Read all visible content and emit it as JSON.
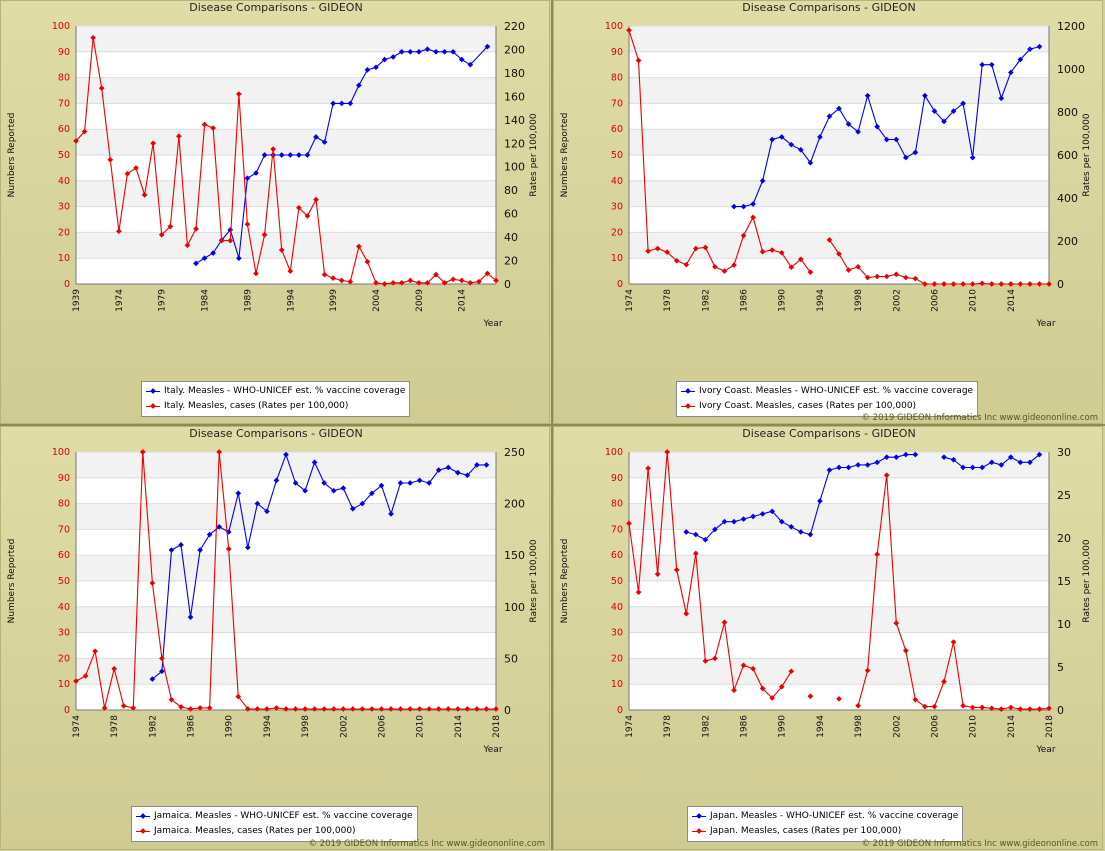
{
  "colors": {
    "coverage": "#0000ee",
    "cases": "#ee0000",
    "left_axis_text": "#dd0000"
  },
  "common": {
    "title": "Disease Comparisons - GIDEON",
    "ylabel_left": "Numbers Reported",
    "ylabel_right": "Rates per 100,000",
    "xlabel": "Year",
    "copyright": "© 2019 GIDEON Informatics Inc www.gideononline.com"
  },
  "chart_data": [
    {
      "type": "line",
      "title": "Disease Comparisons - GIDEON",
      "country": "Italy",
      "xlabel": "Year",
      "ylabel": "Numbers Reported",
      "y2label": "Rates per 100,000",
      "xticks": [
        "1939",
        "1974",
        "1979",
        "1984",
        "1989",
        "1994",
        "1999",
        "2004",
        "2009",
        "2014"
      ],
      "ylim": [
        0,
        100
      ],
      "y2lim": [
        0,
        220
      ],
      "yticks": [
        0,
        10,
        20,
        30,
        40,
        50,
        60,
        70,
        80,
        90,
        100
      ],
      "y2ticks": [
        0,
        20,
        40,
        60,
        80,
        100,
        120,
        140,
        160,
        180,
        200,
        220
      ],
      "grid": true,
      "legend": "bottom",
      "series": [
        {
          "name": "Italy. Measles - WHO-UNICEF est. % vaccine coverage",
          "axis": "left",
          "x": [
            1983,
            1984,
            1985,
            1986,
            1987,
            1988,
            1989,
            1990,
            1991,
            1992,
            1993,
            1994,
            1995,
            1996,
            1997,
            1998,
            1999,
            2000,
            2001,
            2002,
            2003,
            2004,
            2005,
            2006,
            2007,
            2008,
            2009,
            2010,
            2011,
            2012,
            2013,
            2014,
            2015,
            2017
          ],
          "y": [
            8,
            10,
            12,
            17,
            21,
            10,
            41,
            43,
            50,
            50,
            50,
            50,
            50,
            50,
            57,
            55,
            70,
            70,
            70,
            77,
            83,
            84,
            87,
            88,
            90,
            90,
            90,
            91,
            90,
            90,
            90,
            87,
            85,
            92
          ]
        },
        {
          "name": "Italy. Measles, cases (Rates per 100,000)",
          "axis": "right",
          "x": [
            1939,
            1970,
            1971,
            1972,
            1973,
            1974,
            1975,
            1976,
            1977,
            1978,
            1979,
            1980,
            1981,
            1982,
            1983,
            1984,
            1985,
            1986,
            1987,
            1988,
            1989,
            1990,
            1991,
            1992,
            1993,
            1994,
            1995,
            1996,
            1997,
            1998,
            1999,
            2000,
            2001,
            2002,
            2003,
            2004,
            2005,
            2006,
            2007,
            2008,
            2009,
            2010,
            2011,
            2012,
            2013,
            2014,
            2015,
            2016,
            2017,
            2018
          ],
          "y": [
            122,
            130,
            210,
            167,
            106,
            45,
            94,
            99,
            76,
            120,
            42,
            49,
            126,
            33,
            47,
            136,
            133,
            37,
            37,
            162,
            51,
            9,
            42,
            115,
            29,
            11,
            65,
            58,
            72,
            8,
            5,
            3,
            2,
            32,
            19,
            1,
            0,
            1,
            1,
            3,
            1,
            1,
            8,
            1,
            4,
            3,
            1,
            2,
            9,
            3
          ]
        }
      ]
    },
    {
      "type": "line",
      "title": "Disease Comparisons - GIDEON",
      "country": "Ivory Coast",
      "xlabel": "Year",
      "ylabel": "Numbers Reported",
      "y2label": "Rates per 100,000",
      "xticks": [
        "1974",
        "1978",
        "1982",
        "1986",
        "1990",
        "1994",
        "1998",
        "2002",
        "2006",
        "2010",
        "2014"
      ],
      "ylim": [
        0,
        100
      ],
      "y2lim": [
        0,
        1200
      ],
      "yticks": [
        0,
        10,
        20,
        30,
        40,
        50,
        60,
        70,
        80,
        90,
        100
      ],
      "y2ticks": [
        0,
        200,
        400,
        600,
        800,
        1000,
        1200
      ],
      "grid": true,
      "legend": "bottom",
      "series": [
        {
          "name": "Ivory Coast. Measles - WHO-UNICEF est. % vaccine coverage",
          "axis": "left",
          "x": [
            1985,
            1986,
            1987,
            1988,
            1989,
            1990,
            1991,
            1992,
            1993,
            1994,
            1995,
            1996,
            1997,
            1998,
            1999,
            2000,
            2001,
            2002,
            2003,
            2004,
            2005,
            2006,
            2007,
            2008,
            2009,
            2010,
            2011,
            2012,
            2013,
            2014,
            2015,
            2016,
            2017
          ],
          "y": [
            30,
            30,
            31,
            40,
            56,
            57,
            54,
            52,
            47,
            57,
            65,
            68,
            62,
            59,
            73,
            61,
            56,
            56,
            49,
            51,
            73,
            67,
            63,
            67,
            70,
            49,
            85,
            85,
            72,
            82,
            87,
            91,
            92
          ]
        },
        {
          "name": "Ivory Coast. Measles, cases (Rates per 100,000)",
          "axis": "right",
          "x": [
            1974,
            1975,
            1976,
            1977,
            1978,
            1979,
            1980,
            1981,
            1982,
            1983,
            1984,
            1985,
            1986,
            1987,
            1988,
            1989,
            1990,
            1991,
            1992,
            1993,
            null,
            1995,
            1996,
            1997,
            1998,
            1999,
            2000,
            2001,
            2002,
            2003,
            2004,
            2005,
            2006,
            2007,
            2008,
            2009,
            2010,
            2011,
            2012,
            2013,
            2014,
            2015,
            2016,
            2017,
            2018
          ],
          "y": [
            1180,
            1040,
            153,
            165,
            148,
            108,
            90,
            165,
            170,
            80,
            60,
            88,
            225,
            310,
            150,
            158,
            145,
            78,
            115,
            55,
            null,
            205,
            140,
            65,
            80,
            30,
            35,
            35,
            45,
            30,
            25,
            0,
            0,
            0,
            0,
            0,
            0,
            3,
            0,
            0,
            0,
            0,
            0,
            0,
            0
          ]
        }
      ]
    },
    {
      "type": "line",
      "title": "Disease Comparisons - GIDEON",
      "country": "Jamaica",
      "xlabel": "Year",
      "ylabel": "Numbers Reported",
      "y2label": "Rates per 100,000",
      "xticks": [
        "1974",
        "1978",
        "1982",
        "1986",
        "1990",
        "1994",
        "1998",
        "2002",
        "2006",
        "2010",
        "2014",
        "2018"
      ],
      "ylim": [
        0,
        100
      ],
      "y2lim": [
        0,
        250
      ],
      "yticks": [
        0,
        10,
        20,
        30,
        40,
        50,
        60,
        70,
        80,
        90,
        100
      ],
      "y2ticks": [
        0,
        50,
        100,
        150,
        200,
        250
      ],
      "grid": true,
      "legend": "bottom",
      "series": [
        {
          "name": "Jamaica. Measles - WHO-UNICEF est. % vaccine coverage",
          "axis": "left",
          "x": [
            1982,
            1983,
            1984,
            1985,
            1986,
            1987,
            1988,
            1989,
            1990,
            1991,
            1992,
            1993,
            1994,
            1995,
            1996,
            1997,
            1998,
            1999,
            2000,
            2001,
            2002,
            2003,
            2004,
            2005,
            2006,
            2007,
            2008,
            2009,
            2010,
            2011,
            2012,
            2013,
            2014,
            2015,
            2016,
            2017
          ],
          "y": [
            12,
            15,
            62,
            64,
            36,
            62,
            68,
            71,
            69,
            84,
            63,
            80,
            77,
            89,
            99,
            88,
            85,
            96,
            88,
            85,
            86,
            78,
            80,
            84,
            87,
            76,
            88,
            88,
            89,
            88,
            93,
            94,
            92,
            91,
            95,
            95
          ]
        },
        {
          "name": "Jamaica. Measles, cases (Rates per 100,000)",
          "axis": "right",
          "x": [
            1974,
            1975,
            1976,
            1977,
            1978,
            1979,
            1980,
            1981,
            1982,
            1983,
            1984,
            1985,
            1986,
            1987,
            1988,
            1989,
            1990,
            1991,
            1992,
            1993,
            1994,
            1995,
            1996,
            1997,
            1998,
            1999,
            2000,
            2001,
            2002,
            2003,
            2004,
            2005,
            2006,
            2007,
            2008,
            2009,
            2010,
            2011,
            2012,
            2013,
            2014,
            2015,
            2016,
            2017,
            2018
          ],
          "y": [
            28,
            33,
            57,
            2,
            40,
            4,
            2,
            250,
            123,
            50,
            10,
            3,
            1,
            2,
            2,
            250,
            156,
            13,
            1,
            1,
            1,
            2,
            1,
            1,
            1,
            1,
            1,
            1,
            1,
            1,
            1,
            1,
            1,
            1,
            1,
            1,
            1,
            1,
            1,
            1,
            1,
            1,
            1,
            1,
            1
          ]
        }
      ]
    },
    {
      "type": "line",
      "title": "Disease Comparisons - GIDEON",
      "country": "Japan",
      "xlabel": "Year",
      "ylabel": "Numbers Reported",
      "y2label": "Rates per 100,000",
      "xticks": [
        "1974",
        "1978",
        "1982",
        "1986",
        "1990",
        "1994",
        "1998",
        "2002",
        "2006",
        "2010",
        "2014",
        "2018"
      ],
      "ylim": [
        0,
        100
      ],
      "y2lim": [
        0,
        30
      ],
      "yticks": [
        0,
        10,
        20,
        30,
        40,
        50,
        60,
        70,
        80,
        90,
        100
      ],
      "y2ticks": [
        0,
        5,
        10,
        15,
        20,
        25,
        30
      ],
      "grid": true,
      "legend": "bottom",
      "series": [
        {
          "name": "Japan. Measles - WHO-UNICEF est. % vaccine coverage",
          "axis": "left",
          "x": [
            1980,
            1981,
            1982,
            1983,
            1984,
            1985,
            1986,
            1987,
            1988,
            1989,
            1990,
            1991,
            1992,
            1993,
            1994,
            1995,
            1996,
            1997,
            1998,
            1999,
            2000,
            2001,
            2002,
            2003,
            2004,
            null,
            2007,
            2008,
            2009,
            2010,
            2011,
            2012,
            2013,
            2014,
            2015,
            2016,
            2017
          ],
          "y": [
            69,
            68,
            66,
            70,
            73,
            73,
            74,
            75,
            76,
            77,
            73,
            71,
            69,
            68,
            81,
            93,
            94,
            94,
            95,
            95,
            96,
            98,
            98,
            99,
            99,
            null,
            98,
            97,
            94,
            94,
            94,
            96,
            95,
            98,
            96,
            96,
            99
          ]
        },
        {
          "name": "Japan. Measles, cases (Rates per 100,000)",
          "axis": "right",
          "x": [
            1974,
            1975,
            1976,
            1977,
            1978,
            1979,
            1980,
            1981,
            1982,
            1983,
            1984,
            1985,
            1986,
            1987,
            1988,
            1989,
            1990,
            1991,
            null,
            1993,
            null,
            1996,
            null,
            1998,
            1999,
            2000,
            2001,
            2002,
            2003,
            2004,
            2005,
            2006,
            2007,
            2008,
            2009,
            2010,
            2011,
            2012,
            2013,
            2014,
            2015,
            2016,
            2017,
            2018
          ],
          "y": [
            21.7,
            13.7,
            28.1,
            15.8,
            30,
            16.3,
            11.2,
            18.2,
            5.7,
            6,
            10.2,
            2.3,
            5.2,
            4.8,
            2.5,
            1.4,
            2.7,
            4.5,
            null,
            1.6,
            null,
            1.3,
            null,
            0.5,
            4.6,
            18.1,
            27.3,
            10.1,
            6.9,
            1.2,
            0.4,
            0.4,
            3.3,
            7.9,
            0.5,
            0.3,
            0.3,
            0.2,
            0.1,
            0.3,
            0.1,
            0.1,
            0.1,
            0.2
          ]
        }
      ]
    }
  ]
}
